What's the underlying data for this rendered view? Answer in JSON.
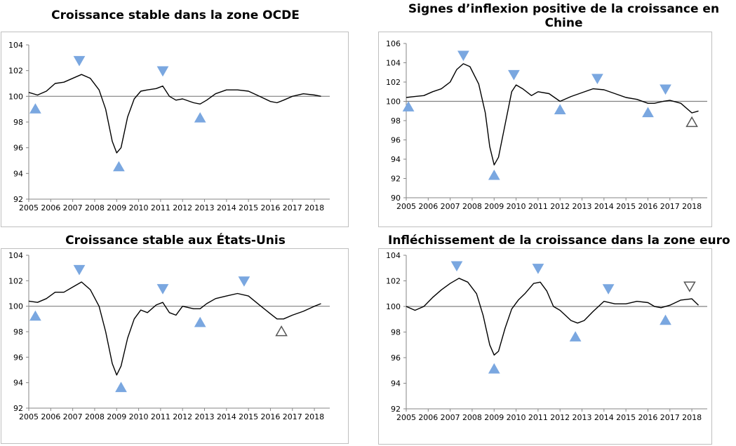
{
  "chart_data": [
    {
      "type": "line",
      "title": "Croissance stable dans la zone OCDE",
      "x_ticks": [
        "2005",
        "2006",
        "2007",
        "2008",
        "2009",
        "2010",
        "2011",
        "2012",
        "2013",
        "2014",
        "2015",
        "2016",
        "2017",
        "2018"
      ],
      "ylim": [
        92,
        104
      ],
      "y_ticks": [
        92,
        94,
        96,
        98,
        100,
        102,
        104
      ],
      "reference_line": 100,
      "x": [
        2005.0,
        2005.4,
        2005.8,
        2006.2,
        2006.6,
        2007.0,
        2007.4,
        2007.8,
        2008.2,
        2008.5,
        2008.8,
        2009.0,
        2009.2,
        2009.5,
        2009.8,
        2010.1,
        2010.4,
        2010.8,
        2011.1,
        2011.4,
        2011.7,
        2012.0,
        2012.5,
        2012.8,
        2013.1,
        2013.5,
        2014.0,
        2014.5,
        2015.0,
        2015.5,
        2016.0,
        2016.3,
        2016.6,
        2017.0,
        2017.5,
        2018.0,
        2018.3
      ],
      "values": [
        100.3,
        100.1,
        100.4,
        101.0,
        101.1,
        101.4,
        101.7,
        101.4,
        100.5,
        99.0,
        96.5,
        95.6,
        96.0,
        98.4,
        99.8,
        100.4,
        100.5,
        100.6,
        100.8,
        100.0,
        99.7,
        99.8,
        99.5,
        99.4,
        99.7,
        100.2,
        100.5,
        100.5,
        100.4,
        100.0,
        99.6,
        99.5,
        99.7,
        100.0,
        100.2,
        100.1,
        100.0
      ],
      "line_color": "#000000",
      "markers": [
        {
          "x": 2005.3,
          "y": 99.0,
          "dir": "up",
          "color": "#7aa7e0"
        },
        {
          "x": 2007.3,
          "y": 102.8,
          "dir": "down",
          "color": "#7aa7e0"
        },
        {
          "x": 2009.1,
          "y": 94.5,
          "dir": "up",
          "color": "#7aa7e0"
        },
        {
          "x": 2011.1,
          "y": 102.0,
          "dir": "down",
          "color": "#7aa7e0"
        },
        {
          "x": 2012.8,
          "y": 98.3,
          "dir": "up",
          "color": "#7aa7e0"
        }
      ]
    },
    {
      "type": "line",
      "title": "Signes d’inflexion positive de la croissance en Chine",
      "x_ticks": [
        "2005",
        "2006",
        "2007",
        "2008",
        "2009",
        "2010",
        "2011",
        "2012",
        "2013",
        "2014",
        "2015",
        "2016",
        "2017",
        "2018"
      ],
      "ylim": [
        90,
        106
      ],
      "y_ticks": [
        90,
        92,
        94,
        96,
        98,
        100,
        102,
        104,
        106
      ],
      "reference_line": 100,
      "x": [
        2005.0,
        2005.4,
        2005.8,
        2006.2,
        2006.6,
        2007.0,
        2007.3,
        2007.6,
        2007.9,
        2008.3,
        2008.6,
        2008.8,
        2009.0,
        2009.2,
        2009.5,
        2009.8,
        2010.0,
        2010.3,
        2010.7,
        2011.0,
        2011.5,
        2012.0,
        2012.5,
        2013.0,
        2013.5,
        2014.0,
        2014.5,
        2015.0,
        2015.5,
        2016.0,
        2016.3,
        2016.7,
        2017.0,
        2017.5,
        2018.0,
        2018.3
      ],
      "values": [
        100.4,
        100.5,
        100.6,
        101.0,
        101.3,
        102.0,
        103.3,
        103.9,
        103.6,
        101.8,
        98.8,
        95.3,
        93.4,
        94.2,
        97.6,
        101.0,
        101.7,
        101.3,
        100.6,
        101.0,
        100.8,
        100.0,
        100.5,
        100.9,
        101.3,
        101.2,
        100.8,
        100.4,
        100.2,
        99.8,
        99.8,
        100.0,
        100.1,
        99.8,
        98.8,
        99.0
      ],
      "line_color": "#000000",
      "markers": [
        {
          "x": 2005.1,
          "y": 99.4,
          "dir": "up",
          "color": "#7aa7e0"
        },
        {
          "x": 2007.6,
          "y": 104.8,
          "dir": "down",
          "color": "#7aa7e0"
        },
        {
          "x": 2009.0,
          "y": 92.3,
          "dir": "up",
          "color": "#7aa7e0"
        },
        {
          "x": 2009.9,
          "y": 102.8,
          "dir": "down",
          "color": "#7aa7e0"
        },
        {
          "x": 2012.0,
          "y": 99.1,
          "dir": "up",
          "color": "#7aa7e0"
        },
        {
          "x": 2013.7,
          "y": 102.4,
          "dir": "down",
          "color": "#7aa7e0"
        },
        {
          "x": 2016.0,
          "y": 98.8,
          "dir": "up",
          "color": "#7aa7e0"
        },
        {
          "x": 2016.8,
          "y": 101.3,
          "dir": "down",
          "color": "#7aa7e0"
        },
        {
          "x": 2018.0,
          "y": 97.8,
          "dir": "up",
          "color": "outline"
        }
      ]
    },
    {
      "type": "line",
      "title": "Croissance stable aux États-Unis",
      "x_ticks": [
        "2005",
        "2006",
        "2007",
        "2008",
        "2009",
        "2010",
        "2011",
        "2012",
        "2013",
        "2014",
        "2015",
        "2016",
        "2017",
        "2018"
      ],
      "ylim": [
        92,
        104
      ],
      "y_ticks": [
        92,
        94,
        96,
        98,
        100,
        102,
        104
      ],
      "reference_line": 100,
      "x": [
        2005.0,
        2005.4,
        2005.8,
        2006.2,
        2006.6,
        2007.0,
        2007.4,
        2007.8,
        2008.2,
        2008.5,
        2008.8,
        2009.0,
        2009.2,
        2009.5,
        2009.8,
        2010.1,
        2010.4,
        2010.8,
        2011.1,
        2011.4,
        2011.7,
        2012.0,
        2012.5,
        2012.8,
        2013.1,
        2013.5,
        2014.0,
        2014.5,
        2015.0,
        2015.5,
        2016.0,
        2016.3,
        2016.6,
        2017.0,
        2017.5,
        2018.0,
        2018.3
      ],
      "values": [
        100.4,
        100.3,
        100.6,
        101.1,
        101.1,
        101.5,
        101.9,
        101.3,
        100.0,
        98.0,
        95.5,
        94.6,
        95.3,
        97.5,
        99.0,
        99.7,
        99.5,
        100.1,
        100.3,
        99.5,
        99.3,
        100.0,
        99.8,
        99.8,
        100.2,
        100.6,
        100.8,
        101.0,
        100.8,
        100.1,
        99.4,
        99.0,
        99.0,
        99.3,
        99.6,
        100.0,
        100.2
      ],
      "line_color": "#000000",
      "markers": [
        {
          "x": 2005.3,
          "y": 99.2,
          "dir": "up",
          "color": "#7aa7e0"
        },
        {
          "x": 2007.3,
          "y": 102.9,
          "dir": "down",
          "color": "#7aa7e0"
        },
        {
          "x": 2009.2,
          "y": 93.6,
          "dir": "up",
          "color": "#7aa7e0"
        },
        {
          "x": 2011.1,
          "y": 101.4,
          "dir": "down",
          "color": "#7aa7e0"
        },
        {
          "x": 2012.8,
          "y": 98.7,
          "dir": "up",
          "color": "#7aa7e0"
        },
        {
          "x": 2014.8,
          "y": 102.0,
          "dir": "down",
          "color": "#7aa7e0"
        },
        {
          "x": 2016.5,
          "y": 98.0,
          "dir": "up",
          "color": "outline"
        }
      ]
    },
    {
      "type": "line",
      "title": "Infléchissement de la croissance dans la zone euro",
      "x_ticks": [
        "2005",
        "2006",
        "2007",
        "2008",
        "2009",
        "2010",
        "2011",
        "2012",
        "2013",
        "2014",
        "2015",
        "2016",
        "2017",
        "2018"
      ],
      "ylim": [
        92,
        104
      ],
      "y_ticks": [
        92,
        94,
        96,
        98,
        100,
        102,
        104
      ],
      "reference_line": 100,
      "x": [
        2005.0,
        2005.4,
        2005.8,
        2006.2,
        2006.6,
        2007.0,
        2007.4,
        2007.8,
        2008.2,
        2008.5,
        2008.8,
        2009.0,
        2009.2,
        2009.5,
        2009.8,
        2010.1,
        2010.4,
        2010.8,
        2011.1,
        2011.4,
        2011.7,
        2012.0,
        2012.5,
        2012.8,
        2013.1,
        2013.5,
        2014.0,
        2014.5,
        2015.0,
        2015.5,
        2016.0,
        2016.3,
        2016.6,
        2017.0,
        2017.5,
        2018.0,
        2018.3
      ],
      "values": [
        100.0,
        99.7,
        100.0,
        100.7,
        101.3,
        101.8,
        102.2,
        101.9,
        101.0,
        99.3,
        97.0,
        96.2,
        96.5,
        98.3,
        99.8,
        100.5,
        101.0,
        101.8,
        101.9,
        101.2,
        100.0,
        99.7,
        98.9,
        98.7,
        98.9,
        99.6,
        100.4,
        100.2,
        100.2,
        100.4,
        100.3,
        100.0,
        99.9,
        100.1,
        100.5,
        100.6,
        100.1
      ],
      "line_color": "#000000",
      "markers": [
        {
          "x": 2007.3,
          "y": 103.2,
          "dir": "down",
          "color": "#7aa7e0"
        },
        {
          "x": 2009.0,
          "y": 95.1,
          "dir": "up",
          "color": "#7aa7e0"
        },
        {
          "x": 2011.0,
          "y": 103.0,
          "dir": "down",
          "color": "#7aa7e0"
        },
        {
          "x": 2012.7,
          "y": 97.6,
          "dir": "up",
          "color": "#7aa7e0"
        },
        {
          "x": 2014.2,
          "y": 101.4,
          "dir": "down",
          "color": "#7aa7e0"
        },
        {
          "x": 2016.8,
          "y": 98.9,
          "dir": "up",
          "color": "#7aa7e0"
        },
        {
          "x": 2017.9,
          "y": 101.6,
          "dir": "down",
          "color": "outline"
        }
      ]
    }
  ]
}
